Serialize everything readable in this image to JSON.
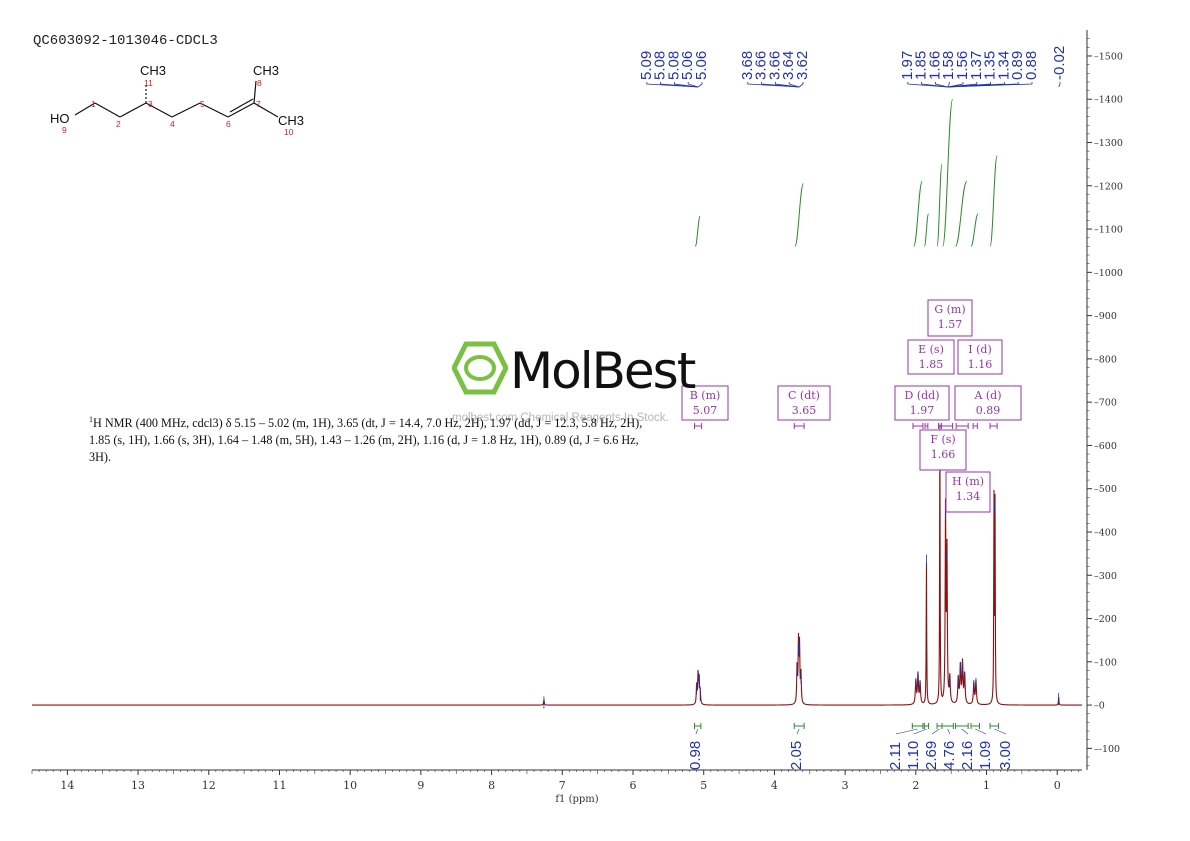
{
  "sample_id": "QC603092-1013046-CDCL3",
  "nmr_description": "H NMR (400 MHz, cdcl3) δ 5.15 – 5.02 (m, 1H), 3.65 (dt, J = 14.4, 7.0 Hz, 2H), 1.97 (dd, J = 12.3, 5.8 Hz, 2H), 1.85 (s, 1H), 1.66 (s, 3H), 1.64 – 1.48 (m, 5H), 1.43 – 1.26 (m, 2H), 1.16 (d, J = 1.8 Hz, 1H), 0.89 (d, J = 6.6 Hz, 3H).",
  "watermark": {
    "brand": "MolBest",
    "tagline": "molbest.com  Chemical Reagents In Stock."
  },
  "molecule": {
    "labels": [
      "HO",
      "CH3",
      "CH3",
      "CH3"
    ],
    "atom_numbers": [
      "1",
      "2",
      "3",
      "4",
      "5",
      "6",
      "7",
      "8",
      "9",
      "10",
      "11"
    ]
  },
  "colors": {
    "spectrum": "#8b1010",
    "peak_labels": "#2233aa",
    "integral": "#2a8a2a",
    "multiplet": "#9933aa",
    "axis": "#333333"
  },
  "chart_data": {
    "type": "line",
    "xlabel": "f1 (ppm)",
    "x_range": [
      14.5,
      -0.35
    ],
    "x_reversed": true,
    "y_range": [
      -150,
      1560
    ],
    "x_ticks": [
      14,
      13,
      12,
      11,
      10,
      9,
      8,
      7,
      6,
      5,
      4,
      3,
      2,
      1,
      0
    ],
    "y_ticks": [
      -100,
      0,
      100,
      200,
      300,
      400,
      500,
      600,
      700,
      800,
      900,
      1000,
      1100,
      1200,
      1300,
      1400,
      1500
    ],
    "peaks": [
      {
        "ppm": 7.26,
        "height": 12,
        "width": 0.006
      },
      {
        "ppm": 5.1,
        "height": 45,
        "width": 0.006
      },
      {
        "ppm": 5.08,
        "height": 70,
        "width": 0.006
      },
      {
        "ppm": 5.065,
        "height": 60,
        "width": 0.006
      },
      {
        "ppm": 5.05,
        "height": 30,
        "width": 0.006
      },
      {
        "ppm": 3.68,
        "height": 85,
        "width": 0.006
      },
      {
        "ppm": 3.66,
        "height": 140,
        "width": 0.006
      },
      {
        "ppm": 3.645,
        "height": 130,
        "width": 0.006
      },
      {
        "ppm": 3.625,
        "height": 70,
        "width": 0.006
      },
      {
        "ppm": 2.0,
        "height": 55,
        "width": 0.008
      },
      {
        "ppm": 1.97,
        "height": 70,
        "width": 0.008
      },
      {
        "ppm": 1.94,
        "height": 50,
        "width": 0.008
      },
      {
        "ppm": 1.85,
        "height": 340,
        "width": 0.004
      },
      {
        "ppm": 1.66,
        "height": 640,
        "width": 0.004
      },
      {
        "ppm": 1.58,
        "height": 450,
        "width": 0.006
      },
      {
        "ppm": 1.56,
        "height": 350,
        "width": 0.006
      },
      {
        "ppm": 1.52,
        "height": 60,
        "width": 0.008
      },
      {
        "ppm": 1.4,
        "height": 60,
        "width": 0.008
      },
      {
        "ppm": 1.37,
        "height": 90,
        "width": 0.008
      },
      {
        "ppm": 1.34,
        "height": 95,
        "width": 0.008
      },
      {
        "ppm": 1.31,
        "height": 70,
        "width": 0.008
      },
      {
        "ppm": 1.18,
        "height": 50,
        "width": 0.008
      },
      {
        "ppm": 1.15,
        "height": 55,
        "width": 0.008
      },
      {
        "ppm": 0.895,
        "height": 470,
        "width": 0.004
      },
      {
        "ppm": 0.88,
        "height": 460,
        "width": 0.004
      },
      {
        "ppm": -0.02,
        "height": 20,
        "width": 0.004
      }
    ],
    "peak_labels": {
      "groups": [
        {
          "ppm": 5.08,
          "values": [
            "5.09",
            "5.08",
            "5.08",
            "5.06",
            "5.06"
          ]
        },
        {
          "ppm": 3.65,
          "values": [
            "3.68",
            "3.66",
            "3.66",
            "3.64",
            "3.62"
          ]
        },
        {
          "ppm": 1.55,
          "values": [
            "1.97",
            "1.85",
            "1.66",
            "1.58",
            "1.56",
            "1.37",
            "1.35",
            "1.34",
            "0.89",
            "0.88"
          ]
        },
        {
          "ppm": -0.02,
          "values": [
            "-0.02"
          ]
        }
      ]
    },
    "integrals": [
      {
        "ppm_start": 5.13,
        "ppm_end": 5.04,
        "value": "0.98"
      },
      {
        "ppm_start": 3.72,
        "ppm_end": 3.58,
        "value": "2.05"
      },
      {
        "ppm_start": 2.05,
        "ppm_end": 1.9,
        "value": "2.11"
      },
      {
        "ppm_start": 1.88,
        "ppm_end": 1.82,
        "value": "1.10"
      },
      {
        "ppm_start": 1.7,
        "ppm_end": 1.63,
        "value": "2.69"
      },
      {
        "ppm_start": 1.63,
        "ppm_end": 1.47,
        "value": "4.76"
      },
      {
        "ppm_start": 1.44,
        "ppm_end": 1.26,
        "value": "2.16"
      },
      {
        "ppm_start": 1.22,
        "ppm_end": 1.1,
        "value": "1.09"
      },
      {
        "ppm_start": 0.95,
        "ppm_end": 0.83,
        "value": "3.00"
      }
    ],
    "integral_curves": [
      {
        "ppm_start": 5.12,
        "ppm_end": 5.05,
        "y_start": 1060,
        "y_end": 1130
      },
      {
        "ppm_start": 3.71,
        "ppm_end": 3.59,
        "y_start": 1060,
        "y_end": 1205
      },
      {
        "ppm_start": 2.03,
        "ppm_end": 1.91,
        "y_start": 1060,
        "y_end": 1210
      },
      {
        "ppm_start": 1.88,
        "ppm_end": 1.82,
        "y_start": 1060,
        "y_end": 1135
      },
      {
        "ppm_start": 1.7,
        "ppm_end": 1.63,
        "y_start": 1060,
        "y_end": 1250
      },
      {
        "ppm_start": 1.62,
        "ppm_end": 1.48,
        "y_start": 1060,
        "y_end": 1400
      },
      {
        "ppm_start": 1.44,
        "ppm_end": 1.28,
        "y_start": 1060,
        "y_end": 1210
      },
      {
        "ppm_start": 1.22,
        "ppm_end": 1.12,
        "y_start": 1060,
        "y_end": 1135
      },
      {
        "ppm_start": 0.95,
        "ppm_end": 0.85,
        "y_start": 1060,
        "y_end": 1270
      }
    ],
    "multiplets": [
      {
        "letter": "A",
        "type": "d",
        "shift": "0.89",
        "ppm_lo": 0.85,
        "ppm_hi": 0.95
      },
      {
        "letter": "B",
        "type": "m",
        "shift": "5.07",
        "ppm_lo": 5.03,
        "ppm_hi": 5.13
      },
      {
        "letter": "C",
        "type": "dt",
        "shift": "3.65",
        "ppm_lo": 3.58,
        "ppm_hi": 3.72
      },
      {
        "letter": "D",
        "type": "dd",
        "shift": "1.97",
        "ppm_lo": 1.9,
        "ppm_hi": 2.04
      },
      {
        "letter": "E",
        "type": "s",
        "shift": "1.85",
        "ppm_lo": 1.83,
        "ppm_hi": 1.87
      },
      {
        "letter": "F",
        "type": "s",
        "shift": "1.66",
        "ppm_lo": 1.64,
        "ppm_hi": 1.68
      },
      {
        "letter": "G",
        "type": "m",
        "shift": "1.57",
        "ppm_lo": 1.48,
        "ppm_hi": 1.64
      },
      {
        "letter": "H",
        "type": "m",
        "shift": "1.34",
        "ppm_lo": 1.26,
        "ppm_hi": 1.43
      },
      {
        "letter": "I",
        "type": "d",
        "shift": "1.16",
        "ppm_lo": 1.13,
        "ppm_hi": 1.19
      }
    ]
  }
}
